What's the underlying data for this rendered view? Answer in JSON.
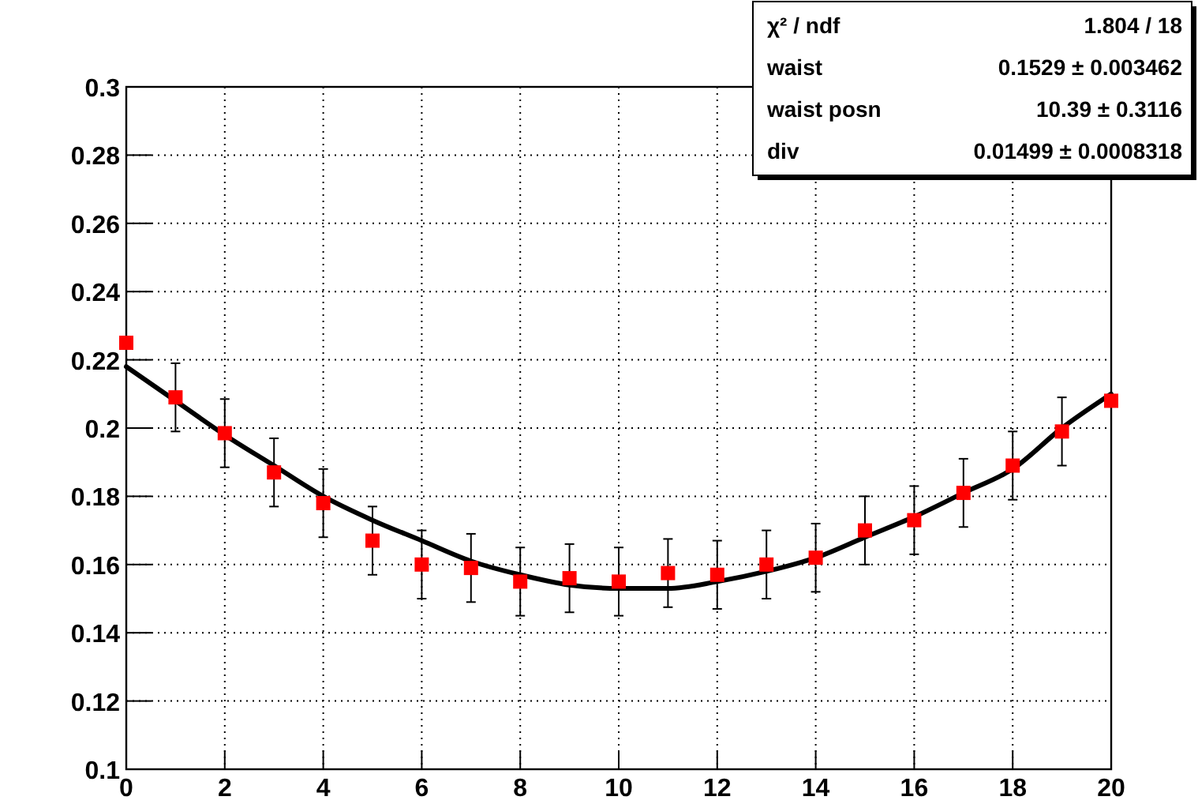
{
  "chart_data": {
    "type": "scatter",
    "x": [
      0,
      1,
      2,
      3,
      4,
      5,
      6,
      7,
      8,
      9,
      10,
      11,
      12,
      13,
      14,
      15,
      16,
      17,
      18,
      19,
      20
    ],
    "xlim": [
      0,
      20
    ],
    "xticks": [
      0,
      2,
      4,
      6,
      8,
      10,
      12,
      14,
      16,
      18,
      20
    ],
    "ylim": [
      0.1,
      0.3
    ],
    "yticks": [
      0.1,
      0.12,
      0.14,
      0.16,
      0.18,
      0.2,
      0.22,
      0.24,
      0.26,
      0.28,
      0.3
    ],
    "grid": true,
    "series": [
      {
        "color": "#ff0000",
        "marker": "square",
        "values": [
          0.225,
          0.209,
          0.1985,
          0.187,
          0.178,
          0.167,
          0.16,
          0.159,
          0.155,
          0.156,
          0.155,
          0.1575,
          0.157,
          0.16,
          0.162,
          0.17,
          0.173,
          0.181,
          0.189,
          0.199,
          0.208
        ],
        "errors": [
          null,
          0.01,
          0.01,
          0.01,
          0.01,
          0.01,
          0.01,
          0.01,
          0.01,
          0.01,
          0.01,
          0.01,
          0.01,
          0.01,
          0.01,
          0.01,
          0.01,
          0.01,
          0.01,
          0.01,
          null
        ]
      },
      {
        "type": "line",
        "color": "#000000",
        "line_style": "solid",
        "x": [
          0,
          1,
          2,
          3,
          4,
          5,
          6,
          7,
          8,
          9,
          10,
          11,
          12,
          13,
          14,
          15,
          16,
          17,
          18,
          19,
          20
        ],
        "values": [
          0.218,
          0.208,
          0.198,
          0.189,
          0.18,
          0.173,
          0.167,
          0.161,
          0.157,
          0.154,
          0.153,
          0.153,
          0.155,
          0.158,
          0.162,
          0.168,
          0.174,
          0.181,
          0.188,
          0.2,
          0.21
        ]
      }
    ],
    "annotations": [
      "χ² / ndf",
      "1.804 / 18",
      "waist",
      "0.1529 ± 0.003462",
      "waist posn",
      "10.39 ± 0.3116",
      "div",
      "0.01499 ± 0.0008318"
    ]
  }
}
